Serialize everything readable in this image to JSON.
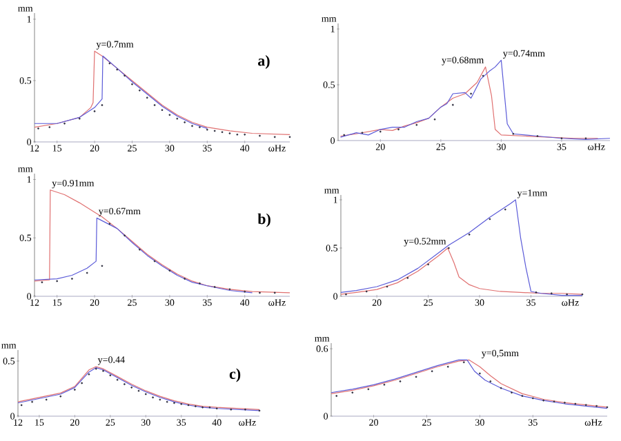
{
  "chart_data": [
    {
      "type": "line",
      "xlabel": "ωHz",
      "ylabel": "mm",
      "xlim": [
        12,
        46
      ],
      "ylim": [
        0,
        1.05
      ],
      "xticks": [
        12,
        15,
        20,
        25,
        30,
        35,
        40
      ],
      "yticks": [
        0,
        0.5,
        1
      ],
      "grid": false,
      "annotations": [
        "a)",
        {
          "text": "y=0.7mm",
          "x": 20,
          "y": 0.74
        }
      ],
      "series": [
        {
          "color": "#e07070",
          "x": [
            12,
            15,
            18,
            19.5,
            19.8,
            20,
            21,
            23,
            25,
            27,
            29,
            31,
            33,
            35,
            38,
            41,
            46
          ],
          "values": [
            0.12,
            0.15,
            0.2,
            0.28,
            0.32,
            0.74,
            0.7,
            0.6,
            0.5,
            0.4,
            0.3,
            0.22,
            0.16,
            0.12,
            0.09,
            0.07,
            0.06
          ]
        },
        {
          "color": "#5a5ad8",
          "x": [
            12,
            15,
            18,
            20,
            21,
            21.1,
            23,
            25,
            27,
            29,
            31,
            33,
            35
          ],
          "values": [
            0.15,
            0.15,
            0.2,
            0.28,
            0.35,
            0.7,
            0.6,
            0.49,
            0.39,
            0.29,
            0.21,
            0.15,
            0.11
          ]
        },
        {
          "type": "scatter",
          "color": "#303040",
          "x": [
            12.5,
            14,
            16,
            18,
            20,
            21,
            22,
            23,
            24,
            25,
            26,
            27,
            28,
            29,
            30,
            31,
            32,
            33,
            34,
            35,
            36,
            37,
            38,
            39,
            40,
            42,
            44,
            46
          ],
          "values": [
            0.11,
            0.12,
            0.15,
            0.19,
            0.25,
            0.3,
            0.64,
            0.59,
            0.54,
            0.47,
            0.42,
            0.36,
            0.3,
            0.26,
            0.22,
            0.19,
            0.16,
            0.13,
            0.12,
            0.1,
            0.09,
            0.08,
            0.07,
            0.06,
            0.06,
            0.05,
            0.04,
            0.04
          ]
        }
      ]
    },
    {
      "type": "line",
      "xlabel": "ωHz",
      "ylabel": "mm",
      "xlim": [
        16.5,
        39
      ],
      "ylim": [
        0,
        1.05
      ],
      "xticks": [
        20,
        25,
        30,
        35
      ],
      "yticks": [
        0,
        0.5,
        1
      ],
      "grid": false,
      "annotations": [
        {
          "text": "y=0.68mm",
          "x": 28.7,
          "y": 0.66
        },
        {
          "text": "y=0.74mm",
          "x": 30,
          "y": 0.72
        }
      ],
      "series": [
        {
          "color": "#e07070",
          "x": [
            16.7,
            18,
            19,
            20,
            21,
            22,
            23,
            24,
            25,
            26,
            27,
            28,
            28.7,
            29.2,
            29.5,
            30,
            32,
            34,
            36,
            38
          ],
          "values": [
            0.04,
            0.06,
            0.08,
            0.1,
            0.09,
            0.13,
            0.16,
            0.2,
            0.3,
            0.38,
            0.42,
            0.52,
            0.66,
            0.4,
            0.1,
            0.05,
            0.04,
            0.03,
            0.02,
            0.02
          ]
        },
        {
          "color": "#5a5ad8",
          "x": [
            16.7,
            18,
            19,
            20,
            21,
            22,
            23,
            24,
            25,
            25.5,
            26,
            27,
            27.5,
            28.3,
            29,
            29.5,
            30,
            30.5,
            31,
            32,
            33,
            35,
            37,
            39
          ],
          "values": [
            0.03,
            0.07,
            0.05,
            0.1,
            0.12,
            0.12,
            0.17,
            0.2,
            0.3,
            0.33,
            0.42,
            0.43,
            0.38,
            0.55,
            0.62,
            0.66,
            0.72,
            0.15,
            0.06,
            0.05,
            0.04,
            0.02,
            0.01,
            0.02
          ]
        },
        {
          "type": "scatter",
          "color": "#303040",
          "x": [
            17,
            18.5,
            20,
            21.5,
            23,
            24.5,
            26,
            27.5,
            28.5,
            31,
            33,
            35,
            37
          ],
          "values": [
            0.05,
            0.07,
            0.08,
            0.1,
            0.14,
            0.19,
            0.32,
            0.42,
            0.58,
            0.06,
            0.04,
            0.02,
            0.02
          ]
        }
      ]
    },
    {
      "type": "line",
      "xlabel": "ωHz",
      "ylabel": "mm",
      "xlim": [
        12,
        46
      ],
      "ylim": [
        0,
        1.05
      ],
      "xticks": [
        12,
        15,
        20,
        25,
        30,
        35,
        40
      ],
      "yticks": [
        0,
        0.5,
        1
      ],
      "grid": false,
      "annotations": [
        "b)",
        {
          "text": "y=0.91mm",
          "x": 14.1,
          "y": 0.91
        },
        {
          "text": "y=0.67mm",
          "x": 20.3,
          "y": 0.67
        }
      ],
      "series": [
        {
          "color": "#e07070",
          "x": [
            12,
            14,
            14.1,
            16,
            18,
            20,
            21,
            23,
            25,
            27,
            29,
            31,
            33,
            35,
            38,
            41,
            46
          ],
          "values": [
            0.13,
            0.14,
            0.91,
            0.87,
            0.8,
            0.72,
            0.68,
            0.58,
            0.47,
            0.36,
            0.27,
            0.19,
            0.13,
            0.09,
            0.06,
            0.04,
            0.03
          ]
        },
        {
          "color": "#5a5ad8",
          "x": [
            12,
            15,
            17,
            19,
            20.2,
            20.3,
            23,
            25,
            27,
            29,
            31,
            33,
            35,
            38,
            41
          ],
          "values": [
            0.14,
            0.15,
            0.18,
            0.24,
            0.3,
            0.67,
            0.58,
            0.46,
            0.35,
            0.26,
            0.18,
            0.12,
            0.09,
            0.05,
            0.03
          ]
        },
        {
          "type": "scatter",
          "color": "#303040",
          "x": [
            13,
            15,
            17,
            19,
            21,
            22,
            24,
            26,
            28,
            30,
            32,
            34,
            36,
            38,
            40,
            42,
            44
          ],
          "values": [
            0.12,
            0.13,
            0.15,
            0.2,
            0.26,
            0.62,
            0.52,
            0.4,
            0.3,
            0.22,
            0.15,
            0.11,
            0.08,
            0.06,
            0.04,
            0.03,
            0.03
          ]
        }
      ]
    },
    {
      "type": "line",
      "xlabel": "ωHz",
      "ylabel": "mm",
      "xlim": [
        16.5,
        40
      ],
      "ylim": [
        0,
        1.05
      ],
      "xticks": [
        20,
        25,
        30,
        35
      ],
      "yticks": [
        0,
        0.5,
        1
      ],
      "grid": false,
      "annotations": [
        {
          "text": "y=0.52mm",
          "x": 26.9,
          "y": 0.5
        },
        {
          "text": "y=1mm",
          "x": 33.5,
          "y": 1.0
        }
      ],
      "series": [
        {
          "color": "#e07070",
          "x": [
            16.5,
            18,
            20,
            22,
            24,
            26,
            26.9,
            27.5,
            28,
            29,
            30,
            32,
            34,
            36,
            38,
            40
          ],
          "values": [
            0.02,
            0.04,
            0.07,
            0.14,
            0.26,
            0.42,
            0.5,
            0.35,
            0.2,
            0.12,
            0.08,
            0.05,
            0.04,
            0.03,
            0.03,
            0.02
          ]
        },
        {
          "color": "#5a5ad8",
          "x": [
            16.5,
            18,
            20,
            22,
            24,
            26,
            27,
            29,
            31,
            33,
            33.5,
            34,
            34.5,
            35,
            36,
            38,
            40
          ],
          "values": [
            0.04,
            0.06,
            0.1,
            0.17,
            0.29,
            0.45,
            0.53,
            0.66,
            0.82,
            0.96,
            1.0,
            0.6,
            0.3,
            0.05,
            0.03,
            0.01,
            0.01
          ]
        },
        {
          "type": "scatter",
          "color": "#303040",
          "x": [
            17,
            19,
            21,
            23,
            25,
            27,
            29,
            31,
            32.5,
            35.5,
            37,
            38.5,
            40
          ],
          "values": [
            0.02,
            0.05,
            0.1,
            0.19,
            0.33,
            0.5,
            0.64,
            0.8,
            0.9,
            0.04,
            0.03,
            0.02,
            0.02
          ]
        }
      ]
    },
    {
      "type": "line",
      "xlabel": "ωHz",
      "ylabel": "mm",
      "xlim": [
        12,
        46
      ],
      "ylim": [
        0,
        0.6
      ],
      "xticks": [
        12,
        15,
        20,
        25,
        30,
        35,
        40
      ],
      "yticks": [
        0,
        0.5
      ],
      "grid": false,
      "annotations": [
        "c)",
        {
          "text": "y=0.44",
          "x": 23,
          "y": 0.45
        }
      ],
      "series": [
        {
          "color": "#e07070",
          "x": [
            12,
            15,
            18,
            20,
            22,
            23,
            24,
            26,
            28,
            30,
            32,
            34,
            36,
            38,
            40,
            43,
            46
          ],
          "values": [
            0.13,
            0.17,
            0.21,
            0.27,
            0.42,
            0.45,
            0.43,
            0.36,
            0.29,
            0.23,
            0.18,
            0.14,
            0.11,
            0.09,
            0.08,
            0.07,
            0.06
          ]
        },
        {
          "color": "#5a5ad8",
          "x": [
            12,
            15,
            18,
            20,
            22,
            23,
            24,
            26,
            28,
            30,
            32,
            34,
            36,
            38,
            40,
            43,
            46
          ],
          "values": [
            0.12,
            0.16,
            0.2,
            0.26,
            0.4,
            0.44,
            0.42,
            0.35,
            0.28,
            0.22,
            0.17,
            0.13,
            0.1,
            0.08,
            0.07,
            0.06,
            0.05
          ]
        },
        {
          "type": "scatter",
          "color": "#303040",
          "x": [
            12.5,
            14,
            16,
            18,
            20,
            21,
            22,
            23,
            24,
            25,
            26,
            27,
            28,
            29,
            30,
            31,
            32,
            33,
            34,
            35,
            36,
            37,
            38,
            39,
            40,
            42,
            44,
            46
          ],
          "values": [
            0.1,
            0.13,
            0.15,
            0.18,
            0.24,
            0.3,
            0.38,
            0.43,
            0.41,
            0.37,
            0.33,
            0.29,
            0.26,
            0.23,
            0.2,
            0.17,
            0.15,
            0.13,
            0.12,
            0.11,
            0.1,
            0.09,
            0.08,
            0.08,
            0.07,
            0.06,
            0.06,
            0.05
          ]
        }
      ]
    },
    {
      "type": "line",
      "xlabel": "ωHz",
      "ylabel": "mm",
      "xlim": [
        16,
        42
      ],
      "ylim": [
        0,
        0.65
      ],
      "xticks": [
        20,
        25,
        30,
        35
      ],
      "yticks": [
        0,
        0.6
      ],
      "grid": false,
      "annotations": [
        {
          "text": "y=0,5mm",
          "x": 30,
          "y": 0.5
        }
      ],
      "series": [
        {
          "color": "#e07070",
          "x": [
            16,
            18,
            20,
            22,
            24,
            26,
            28,
            29,
            30,
            31,
            32,
            34,
            36,
            38,
            40,
            42
          ],
          "values": [
            0.2,
            0.23,
            0.27,
            0.32,
            0.38,
            0.44,
            0.49,
            0.5,
            0.44,
            0.36,
            0.29,
            0.2,
            0.15,
            0.12,
            0.1,
            0.08
          ]
        },
        {
          "color": "#5a5ad8",
          "x": [
            16,
            18,
            20,
            22,
            24,
            26,
            28,
            28.8,
            29.5,
            30.5,
            32,
            34,
            36,
            38,
            40,
            42
          ],
          "values": [
            0.21,
            0.24,
            0.28,
            0.33,
            0.39,
            0.45,
            0.5,
            0.5,
            0.4,
            0.32,
            0.25,
            0.18,
            0.14,
            0.11,
            0.09,
            0.07
          ]
        },
        {
          "type": "scatter",
          "color": "#303040",
          "x": [
            16.5,
            18,
            19.5,
            21,
            22.5,
            24,
            25.5,
            27,
            28.5,
            30,
            31,
            32,
            33,
            34,
            35,
            36,
            37,
            38,
            39,
            40,
            41,
            42
          ],
          "values": [
            0.18,
            0.21,
            0.24,
            0.28,
            0.31,
            0.35,
            0.4,
            0.44,
            0.48,
            0.38,
            0.31,
            0.25,
            0.21,
            0.18,
            0.16,
            0.14,
            0.13,
            0.12,
            0.11,
            0.1,
            0.09,
            0.08
          ]
        }
      ]
    }
  ]
}
